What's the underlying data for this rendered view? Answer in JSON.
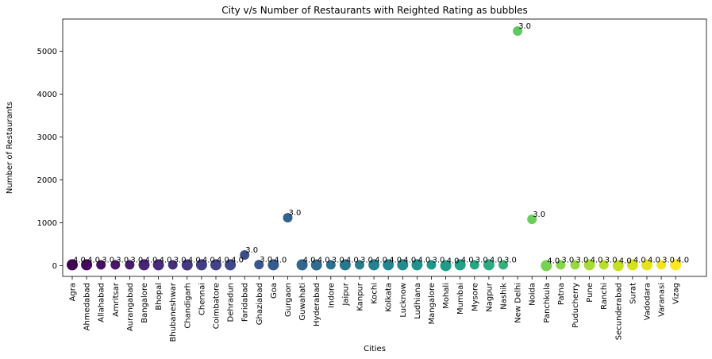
{
  "chart_data": {
    "type": "scatter",
    "title": "City v/s Number of Restaurants with Reighted Rating as bubbles",
    "xlabel": "Cities",
    "ylabel": "Number of Restaurants",
    "ylim": [
      -250,
      5750
    ],
    "yticks": [
      0,
      1000,
      2000,
      3000,
      4000,
      5000
    ],
    "grid": false,
    "colormap": "viridis",
    "points": [
      {
        "city": "Agra",
        "value": 20,
        "label": "4.0",
        "color": "#440154"
      },
      {
        "city": "Ahmedabad",
        "value": 21,
        "label": "4.0",
        "color": "#46085c"
      },
      {
        "city": "Allahabad",
        "value": 20,
        "label": "3.0",
        "color": "#471063"
      },
      {
        "city": "Amritsar",
        "value": 21,
        "label": "3.0",
        "color": "#481769"
      },
      {
        "city": "Aurangabad",
        "value": 20,
        "label": "3.0",
        "color": "#481d6f"
      },
      {
        "city": "Bangalore",
        "value": 20,
        "label": "4.0",
        "color": "#482475"
      },
      {
        "city": "Bhopal",
        "value": 20,
        "label": "4.0",
        "color": "#472a7a"
      },
      {
        "city": "Bhubaneshwar",
        "value": 21,
        "label": "3.0",
        "color": "#46307e"
      },
      {
        "city": "Chandigarh",
        "value": 18,
        "label": "4.0",
        "color": "#453781"
      },
      {
        "city": "Chennai",
        "value": 20,
        "label": "4.0",
        "color": "#433d84"
      },
      {
        "city": "Coimbatore",
        "value": 20,
        "label": "4.0",
        "color": "#414287"
      },
      {
        "city": "Dehradun",
        "value": 20,
        "label": "4.0",
        "color": "#3f4889"
      },
      {
        "city": "Faridabad",
        "value": 251,
        "label": "3.0",
        "color": "#3c4f8a"
      },
      {
        "city": "Ghaziabad",
        "value": 25,
        "label": "3.0",
        "color": "#39558c"
      },
      {
        "city": "Goa",
        "value": 20,
        "label": "4.0",
        "color": "#365c8d"
      },
      {
        "city": "Gurgaon",
        "value": 1118,
        "label": "3.0",
        "color": "#34618d"
      },
      {
        "city": "Guwahati",
        "value": 21,
        "label": "4.0",
        "color": "#31668e"
      },
      {
        "city": "Hyderabad",
        "value": 18,
        "label": "4.0",
        "color": "#2f6c8e"
      },
      {
        "city": "Indore",
        "value": 20,
        "label": "3.0",
        "color": "#2c718e"
      },
      {
        "city": "Jaipur",
        "value": 20,
        "label": "4.0",
        "color": "#2a768e"
      },
      {
        "city": "Kanpur",
        "value": 20,
        "label": "3.0",
        "color": "#287c8e"
      },
      {
        "city": "Kochi",
        "value": 20,
        "label": "4.0",
        "color": "#26818e"
      },
      {
        "city": "Kolkata",
        "value": 20,
        "label": "4.0",
        "color": "#24868e"
      },
      {
        "city": "Lucknow",
        "value": 21,
        "label": "4.0",
        "color": "#228b8d"
      },
      {
        "city": "Ludhiana",
        "value": 20,
        "label": "4.0",
        "color": "#20918c"
      },
      {
        "city": "Mangalore",
        "value": 20,
        "label": "3.0",
        "color": "#1f968b"
      },
      {
        "city": "Mohali",
        "value": 1,
        "label": "4.0",
        "color": "#1f9c89"
      },
      {
        "city": "Mumbai",
        "value": 20,
        "label": "4.0",
        "color": "#21a187"
      },
      {
        "city": "Mysore",
        "value": 20,
        "label": "3.0",
        "color": "#25a584"
      },
      {
        "city": "Nagpur",
        "value": 20,
        "label": "4.0",
        "color": "#2dab81"
      },
      {
        "city": "Nashik",
        "value": 20,
        "label": "3.0",
        "color": "#34b07c"
      },
      {
        "city": "New Delhi",
        "value": 5473,
        "label": "3.0",
        "color": "#5ec962"
      },
      {
        "city": "Noida",
        "value": 1080,
        "label": "3.0",
        "color": "#6bcd5a"
      },
      {
        "city": "Panchkula",
        "value": 1,
        "label": "4.0",
        "color": "#78d152"
      },
      {
        "city": "Patna",
        "value": 20,
        "label": "3.0",
        "color": "#87d549"
      },
      {
        "city": "Puducherry",
        "value": 20,
        "label": "3.0",
        "color": "#97d83f"
      },
      {
        "city": "Pune",
        "value": 20,
        "label": "4.0",
        "color": "#a7db35"
      },
      {
        "city": "Ranchi",
        "value": 20,
        "label": "3.0",
        "color": "#b7de2a"
      },
      {
        "city": "Secunderabad",
        "value": 2,
        "label": "4.0",
        "color": "#c6e021"
      },
      {
        "city": "Surat",
        "value": 20,
        "label": "4.0",
        "color": "#d5e21a"
      },
      {
        "city": "Vadodara",
        "value": 20,
        "label": "4.0",
        "color": "#e4e419"
      },
      {
        "city": "Varanasi",
        "value": 20,
        "label": "3.0",
        "color": "#f0e51c"
      },
      {
        "city": "Vizag",
        "value": 20,
        "label": "4.0",
        "color": "#fde725"
      }
    ]
  }
}
